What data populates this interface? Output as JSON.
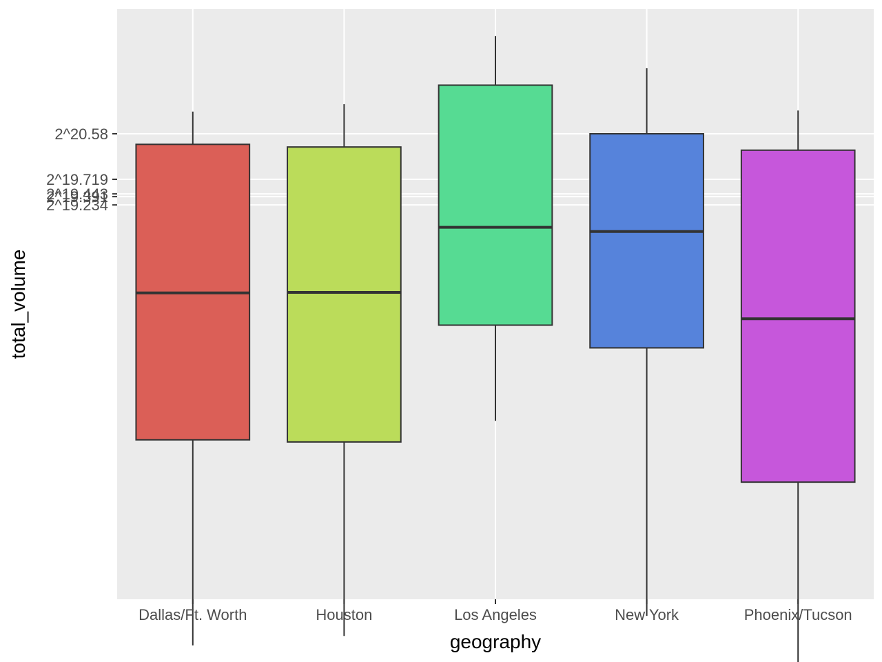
{
  "chart_data": {
    "type": "box",
    "xlabel": "geography",
    "ylabel": "total_volume",
    "y_scale": "log2",
    "y_ticks": [
      "2^20.58",
      "2^19.719",
      "2^19.443",
      "2^19.391",
      "2^19.234"
    ],
    "y_tick_values": [
      20.58,
      19.719,
      19.443,
      19.391,
      19.234
    ],
    "categories": [
      "Dallas/Ft. Worth",
      "Houston",
      "Los Angeles",
      "New York",
      "Phoenix/Tucson"
    ],
    "boxes": [
      {
        "category": "Dallas/Ft. Worth",
        "color": "#DB5F57",
        "min": 10.9,
        "q1": 14.79,
        "median": 17.57,
        "q3": 20.38,
        "max": 21.0
      },
      {
        "category": "Houston",
        "color": "#BBDC5A",
        "min": 11.08,
        "q1": 14.75,
        "median": 17.58,
        "q3": 20.33,
        "max": 21.14
      },
      {
        "category": "Los Angeles",
        "color": "#56DB93",
        "min": 15.15,
        "q1": 16.96,
        "median": 18.81,
        "q3": 21.5,
        "max": 22.43
      },
      {
        "category": "New York",
        "color": "#5683DB",
        "min": 11.46,
        "q1": 16.53,
        "median": 18.73,
        "q3": 20.58,
        "max": 21.82
      },
      {
        "category": "Phoenix/Tucson",
        "color": "#C657DB",
        "min": 10.12,
        "q1": 13.99,
        "median": 17.08,
        "q3": 20.27,
        "max": 21.02
      }
    ],
    "grid": true
  }
}
